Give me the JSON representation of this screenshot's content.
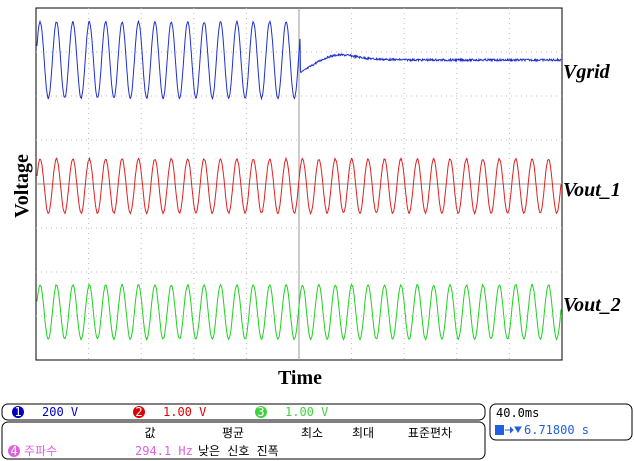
{
  "axes": {
    "y_label": "Voltage",
    "x_label": "Time"
  },
  "traces": [
    {
      "label": "Vgrid"
    },
    {
      "label": "Vout_1"
    },
    {
      "label": "Vout_2"
    }
  ],
  "status": {
    "channels": [
      {
        "number": "1",
        "scale": "200 V"
      },
      {
        "number": "2",
        "scale": "1.00 V"
      },
      {
        "number": "3",
        "scale": "1.00 V"
      }
    ],
    "timebase": "40.0ms",
    "trigger": "6.71800 s",
    "measurement_headers": [
      "값",
      "평균",
      "최소",
      "최대",
      "표준편차"
    ],
    "measurement": {
      "number": "4",
      "name": "주파수",
      "value": "294.1 Hz",
      "note": "낮은 신호 진폭"
    }
  }
}
